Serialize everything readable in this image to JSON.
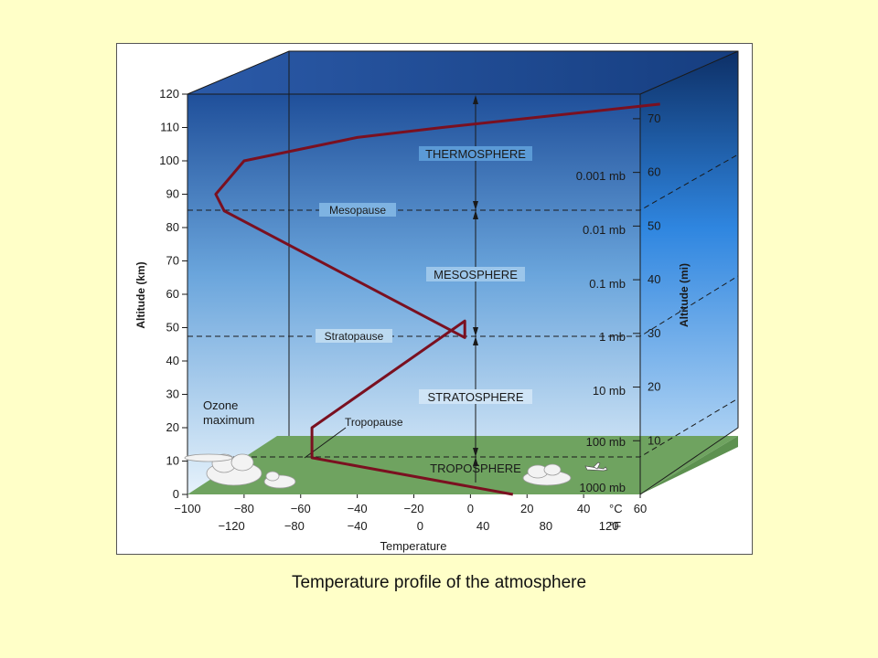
{
  "caption": "Temperature profile of the atmosphere",
  "colors": {
    "page_bg": "#ffffc8",
    "sky_top": "#1f4f9a",
    "sky_bottom": "#e3f0fb",
    "ground": "#6fa360",
    "profile_line": "#7a1020"
  },
  "zones": {
    "thermosphere": "THERMOSPHERE",
    "mesosphere": "MESOSPHERE",
    "stratosphere": "STRATOSPHERE",
    "troposphere": "TROPOSPHERE"
  },
  "boundaries": {
    "mesopause": "Mesopause",
    "stratopause": "Stratopause",
    "tropopause": "Tropopause"
  },
  "ozone": [
    "Ozone",
    "maximum"
  ],
  "axes": {
    "altitude_km_label": "Altitude (km)",
    "altitude_mi_label": "Altitude (mi)",
    "temperature_label": "Temperature",
    "celsius_unit": "°C",
    "fahrenheit_unit": "°F",
    "km_ticks": [
      "0",
      "10",
      "20",
      "30",
      "40",
      "50",
      "60",
      "70",
      "80",
      "90",
      "100",
      "110",
      "120"
    ],
    "mi_ticks": [
      "10",
      "20",
      "30",
      "40",
      "50",
      "60",
      "70"
    ],
    "celsius_ticks": [
      "−100",
      "−80",
      "−60",
      "−40",
      "−20",
      "0",
      "20",
      "40",
      "60"
    ],
    "fahrenheit_ticks": [
      "−120",
      "−80",
      "−40",
      "0",
      "40",
      "80",
      "120"
    ],
    "pressure_labels": [
      "1000 mb",
      "100 mb",
      "10 mb",
      "1 mb",
      "0.1 mb",
      "0.01 mb",
      "0.001 mb"
    ]
  },
  "chart_data": {
    "type": "line",
    "xlabel": "Temperature",
    "ylabel": "Altitude (km)",
    "xlim": [
      -100,
      60
    ],
    "ylim": [
      0,
      120
    ],
    "series": [
      {
        "x": [
          15,
          -56,
          -56,
          -2,
          -2,
          -87,
          -90,
          -80,
          -40,
          -10,
          67
        ],
        "y": [
          0,
          11,
          20,
          52,
          47,
          85,
          90,
          100,
          107,
          110,
          117
        ]
      }
    ]
  }
}
